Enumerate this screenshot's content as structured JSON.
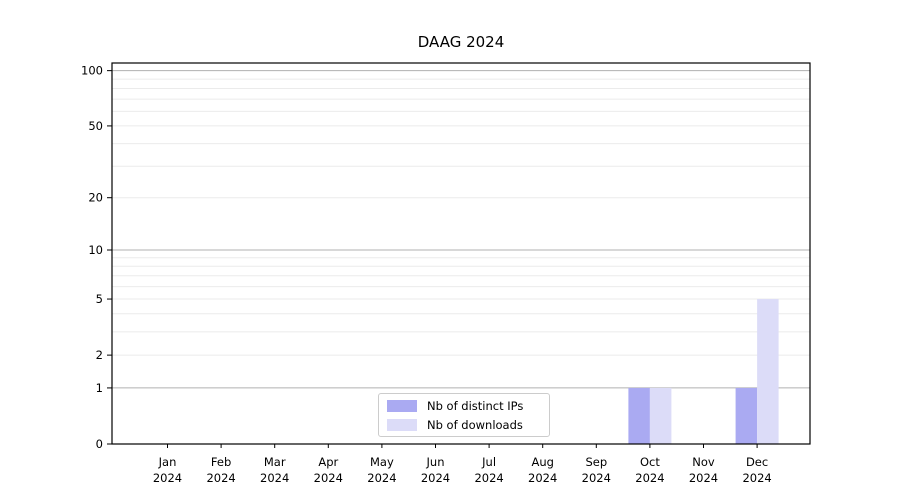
{
  "chart_data": {
    "type": "bar",
    "title": "DAAG 2024",
    "categories": [
      "Jan",
      "Feb",
      "Mar",
      "Apr",
      "May",
      "Jun",
      "Jul",
      "Aug",
      "Sep",
      "Oct",
      "Nov",
      "Dec"
    ],
    "category_sublabel": "2024",
    "series": [
      {
        "name": "Nb of distinct IPs",
        "color": "#aaaaf2",
        "values": [
          0,
          0,
          0,
          0,
          0,
          0,
          0,
          0,
          0,
          1,
          0,
          1
        ]
      },
      {
        "name": "Nb of downloads",
        "color": "#dcdcf8",
        "values": [
          0,
          0,
          0,
          0,
          0,
          0,
          0,
          0,
          0,
          1,
          0,
          5
        ]
      }
    ],
    "xlabel": "",
    "ylabel": "",
    "yscale": "log1p",
    "ylim": [
      0,
      110
    ],
    "yticks": [
      0,
      1,
      2,
      5,
      10,
      20,
      50,
      100
    ],
    "gridlines": {
      "major": [
        1,
        10,
        100
      ],
      "minor": [
        2,
        3,
        4,
        5,
        6,
        7,
        8,
        9,
        20,
        30,
        40,
        50,
        60,
        70,
        80,
        90
      ]
    },
    "grid": "horizontal",
    "legend_position": "bottom-center",
    "colors": {
      "grid_major": "#b0b0b0",
      "grid_minor": "#ebebeb",
      "axis": "#000000",
      "background": "#ffffff"
    }
  }
}
